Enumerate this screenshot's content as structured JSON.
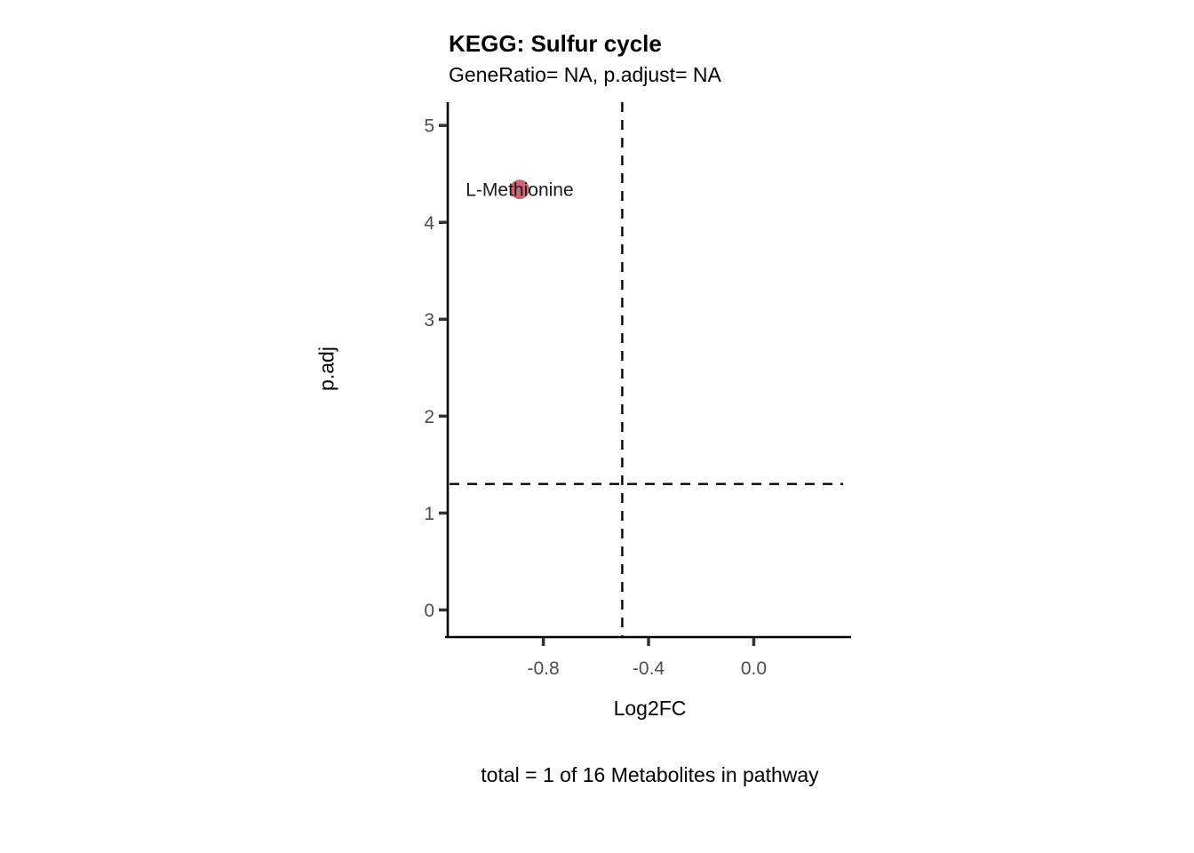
{
  "chart_data": {
    "type": "scatter",
    "title": "KEGG: Sulfur cycle",
    "subtitle": "GeneRatio= NA, p.adjust= NA",
    "xlabel": "Log2FC",
    "ylabel": "p.adj",
    "caption": "total = 1 of 16 Metabolites in pathway",
    "xlim": [
      -1.16,
      0.37
    ],
    "ylim": [
      -0.28,
      5.24
    ],
    "grid": false,
    "legend": false,
    "x_ticks": [
      {
        "value": -0.8,
        "label": "-0.8"
      },
      {
        "value": -0.4,
        "label": "-0.4"
      },
      {
        "value": 0.0,
        "label": "0.0"
      }
    ],
    "y_ticks": [
      {
        "value": 0,
        "label": "0"
      },
      {
        "value": 1,
        "label": "1"
      },
      {
        "value": 2,
        "label": "2"
      },
      {
        "value": 3,
        "label": "3"
      },
      {
        "value": 4,
        "label": "4"
      },
      {
        "value": 5,
        "label": "5"
      }
    ],
    "points": [
      {
        "label": "L-Methionine",
        "x": -0.89,
        "y": 4.34,
        "color": "#CC6677",
        "radius": 11
      }
    ],
    "threshold_lines": [
      {
        "orientation": "vertical",
        "value": -0.5,
        "style": "dashed",
        "color": "#000000"
      },
      {
        "orientation": "horizontal",
        "value": 1.3,
        "style": "dashed",
        "color": "#000000"
      }
    ],
    "colors": {
      "axis_line": "#000000",
      "tick_mark": "#333333",
      "tick_label": "#4D4D4D",
      "point_label": "#1A1A1A",
      "background": "#FFFFFF"
    }
  }
}
